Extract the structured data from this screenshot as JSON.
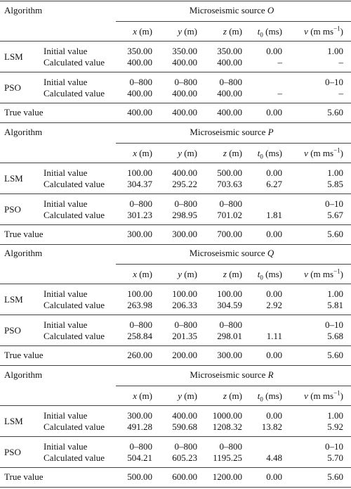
{
  "columns": [
    {
      "sym": "x",
      "unit": "(m)"
    },
    {
      "sym": "y",
      "unit": "(m)"
    },
    {
      "sym": "z",
      "unit": "(m)"
    },
    {
      "sym": "t",
      "sub": "0",
      "unit": "(ms)"
    },
    {
      "sym": "v",
      "unit": "(m ms",
      "sup": "−1",
      "close": ")"
    }
  ],
  "blocks": [
    {
      "algorithm": "Algorithm",
      "source_label": "Microseismic source",
      "source": "O",
      "groups": [
        {
          "name": "LSM",
          "rows": [
            {
              "label": "Initial value",
              "cells": [
                "350.00",
                "350.00",
                "350.00",
                "0.00",
                "1.00"
              ]
            },
            {
              "label": "Calculated value",
              "cells": [
                "400.00",
                "400.00",
                "400.00",
                "–",
                "–"
              ]
            }
          ]
        },
        {
          "name": "PSO",
          "rows": [
            {
              "label": "Initial value",
              "cells": [
                "0–800",
                "0–800",
                "0–800",
                null,
                "0–10"
              ]
            },
            {
              "label": "Calculated value",
              "cells": [
                "400.00",
                "400.00",
                "400.00",
                "–",
                "–"
              ]
            }
          ]
        }
      ],
      "true_value": {
        "label": "True value",
        "cells": [
          "400.00",
          "400.00",
          "400.00",
          "0.00",
          "5.60"
        ]
      }
    },
    {
      "algorithm": "Algorithm",
      "source_label": "Microseismic source",
      "source": "P",
      "groups": [
        {
          "name": "LSM",
          "rows": [
            {
              "label": "Initial value",
              "cells": [
                "100.00",
                "400.00",
                "500.00",
                "0.00",
                "1.00"
              ]
            },
            {
              "label": "Calculated value",
              "cells": [
                "304.37",
                "295.22",
                "703.63",
                "6.27",
                "5.85"
              ]
            }
          ]
        },
        {
          "name": "PSO",
          "rows": [
            {
              "label": "Initial value",
              "cells": [
                "0–800",
                "0–800",
                "0–800",
                null,
                "0–10"
              ]
            },
            {
              "label": "Calculated value",
              "cells": [
                "301.23",
                "298.95",
                "701.02",
                "1.81",
                "5.67"
              ]
            }
          ]
        }
      ],
      "true_value": {
        "label": "True value",
        "cells": [
          "300.00",
          "300.00",
          "700.00",
          "0.00",
          "5.60"
        ]
      }
    },
    {
      "algorithm": "Algorithm",
      "source_label": "Microseismic source",
      "source": "Q",
      "groups": [
        {
          "name": "LSM",
          "rows": [
            {
              "label": "Initial value",
              "cells": [
                "100.00",
                "100.00",
                "100.00",
                "0.00",
                "1.00"
              ]
            },
            {
              "label": "Calculated value",
              "cells": [
                "263.98",
                "206.33",
                "304.59",
                "2.92",
                "5.81"
              ]
            }
          ]
        },
        {
          "name": "PSO",
          "rows": [
            {
              "label": "Initial value",
              "cells": [
                "0–800",
                "0–800",
                "0–800",
                null,
                "0–10"
              ]
            },
            {
              "label": "Calculated value",
              "cells": [
                "258.84",
                "201.35",
                "298.01",
                "1.11",
                "5.68"
              ]
            }
          ]
        }
      ],
      "true_value": {
        "label": "True value",
        "cells": [
          "260.00",
          "200.00",
          "300.00",
          "0.00",
          "5.60"
        ]
      }
    },
    {
      "algorithm": "Algorithm",
      "source_label": "Microseismic source",
      "source": "R",
      "groups": [
        {
          "name": "LSM",
          "rows": [
            {
              "label": "Initial value",
              "cells": [
                "300.00",
                "400.00",
                "1000.00",
                "0.00",
                "1.00"
              ]
            },
            {
              "label": "Calculated value",
              "cells": [
                "491.28",
                "590.68",
                "1208.32",
                "13.82",
                "5.92"
              ]
            }
          ]
        },
        {
          "name": "PSO",
          "rows": [
            {
              "label": "Initial value",
              "cells": [
                "0–800",
                "0–800",
                "0–800",
                null,
                "0–10"
              ]
            },
            {
              "label": "Calculated value",
              "cells": [
                "504.21",
                "605.23",
                "1195.25",
                "4.48",
                "5.70"
              ]
            }
          ]
        }
      ],
      "true_value": {
        "label": "True value",
        "cells": [
          "500.00",
          "600.00",
          "1200.00",
          "0.00",
          "5.60"
        ]
      }
    }
  ]
}
